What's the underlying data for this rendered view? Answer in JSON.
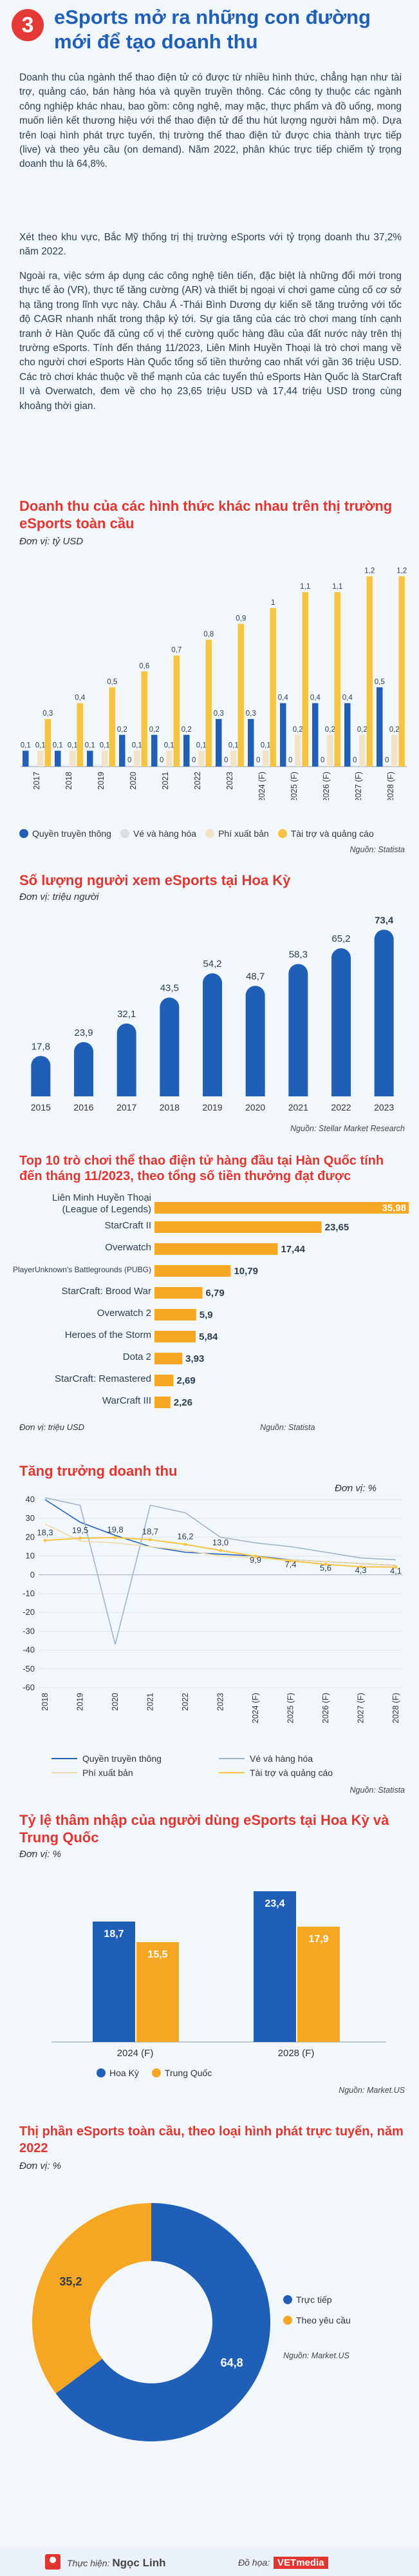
{
  "header": {
    "number": "3",
    "title": "eSports mở ra những con đường mới để tạo doanh thu"
  },
  "intro": [
    "Doanh thu của ngành thể thao điện tử có được từ nhiều hình thức, chẳng hạn như tài trợ, quảng cáo, bán hàng hóa và quyền truyền thông. Các công ty thuộc các ngành công nghiệp khác nhau, bao gồm: công nghệ, may mặc, thực phẩm và đồ uống, mong muốn liên kết thương hiệu với thể thao điện tử để thu hút lượng người hâm mộ. Dựa trên loại hình phát trực tuyến, thị trường thể thao điện tử được chia thành trực tiếp (live) và theo yêu cầu (on demand). Năm 2022, phân khúc trực tiếp chiếm tỷ trọng doanh thu là 64,8%.",
    "Xét theo khu vực, Bắc Mỹ thống trị thị trường eSports với tỷ trọng doanh thu 37,2% năm 2022.",
    "Ngoài ra, việc sớm áp dụng các công nghệ tiên tiến, đặc biệt là những đổi mới trong thực tế ảo (VR), thực tế tăng cường (AR) và thiết bị ngoại vi chơi game củng cố cơ sở hạ tầng trong lĩnh vực này. Châu Á -Thái Bình Dương dự kiến sẽ tăng trưởng với tốc độ CAGR nhanh nhất trong thập kỷ tới. Sự gia tăng của các trò chơi mang tính cạnh tranh ở Hàn Quốc đã củng cố vị thế cường quốc hàng đầu của đất nước này trên thị trường eSports. Tính đến tháng 11/2023, Liên Minh Huyền Thoại là trò chơi mang về cho người chơi eSports Hàn Quốc tổng số tiền thưởng cao nhất với gần 36 triệu USD. Các trò chơi khác thuộc về thể mạnh của các tuyển thủ eSports Hàn Quốc là StarCraft II và Overwatch, đem về cho họ 23,65 triệu USD và 17,44 triệu USD trong cùng khoảng thời gian."
  ],
  "chart1": {
    "title": "Doanh thu của các hình thức khác nhau trên thị trường eSports toàn cầu",
    "unit": "Đơn vị: tỷ USD",
    "source": "Nguồn: Statista",
    "colors": {
      "media": "#1f5fb8",
      "merch": "#d9dee4",
      "publisher": "#f1e3c7",
      "sponsor": "#f5c443"
    },
    "chart_data": {
      "type": "bar",
      "categories": [
        "2017",
        "2018",
        "2019",
        "2020",
        "2021",
        "2022",
        "2023",
        "2024 (F)",
        "2025 (F)",
        "2026 (F)",
        "2027 (F)",
        "2028 (F)"
      ],
      "series": [
        {
          "name": "Quyền truyền thông",
          "values": [
            0.1,
            0.1,
            0.1,
            0.2,
            0.2,
            0.2,
            0.3,
            0.3,
            0.4,
            0.4,
            0.4,
            0.5
          ]
        },
        {
          "name": "Vé và hàng hóa",
          "values": [
            0.0,
            0.0,
            0.0,
            0.0,
            0.0,
            0.0,
            0.0,
            0.0,
            0.0,
            0.0,
            0.0,
            0.0
          ]
        },
        {
          "name": "Phí xuất bản",
          "values": [
            0.1,
            0.1,
            0.1,
            0.1,
            0.1,
            0.1,
            0.1,
            0.1,
            0.2,
            0.2,
            0.2,
            0.2
          ]
        },
        {
          "name": "Tài trợ và quảng cáo",
          "values": [
            0.3,
            0.4,
            0.5,
            0.6,
            0.7,
            0.8,
            0.9,
            1.0,
            1.1,
            1.1,
            1.2,
            1.2
          ]
        }
      ],
      "labels": {
        "media": [
          "0,1",
          "0,1",
          "0,1",
          "0,2",
          "0,2",
          "0,2",
          "0,3",
          "0,3",
          "0,4",
          "0,4",
          "0,4",
          "0,5"
        ],
        "merch": [
          "",
          "",
          "",
          "0",
          "0",
          "0",
          "0",
          "0",
          "0",
          "0",
          "0",
          "0"
        ],
        "publisher": [
          "0,1",
          "0,1",
          "0,1",
          "0,1",
          "0,1",
          "0,1",
          "0,1",
          "0,1",
          "0,2",
          "0,2",
          "0,2",
          "0,2"
        ],
        "sponsor": [
          "0,3",
          "0,4",
          "0,5",
          "0,6",
          "0,7",
          "0,8",
          "0,9",
          "1",
          "1,1",
          "1,1",
          "1,2",
          "1,2"
        ]
      },
      "ylim": [
        0,
        1.3
      ]
    }
  },
  "chart2": {
    "title": "Số lượng người xem eSports tại Hoa Kỳ",
    "unit": "Đơn vị: triệu người",
    "source": "Nguồn: Stellar Market Research",
    "color": "#1f5fb8",
    "chart_data": {
      "type": "bar",
      "categories": [
        "2015",
        "2016",
        "2017",
        "2018",
        "2019",
        "2020",
        "2021",
        "2022",
        "2023"
      ],
      "values": [
        17.8,
        23.9,
        32.1,
        43.5,
        54.2,
        48.7,
        58.3,
        65.2,
        73.4
      ],
      "value_labels": [
        "17,8",
        "23,9",
        "32,1",
        "43,5",
        "54,2",
        "48,7",
        "58,3",
        "65,2",
        "73,4"
      ],
      "ylim": [
        0,
        80
      ]
    }
  },
  "chart3": {
    "title": "Top 10 trò chơi thể thao điện tử hàng đầu tại Hàn Quốc tính đến tháng 11/2023, theo tổng số tiền thưởng đạt được",
    "unit": "Đơn vị: triệu USD",
    "source": "Nguồn: Statista",
    "color": "#f5a623",
    "chart_data": {
      "type": "bar",
      "orientation": "horizontal",
      "categories": [
        "Liên Minh Huyền Thoại (League of Legends)",
        "StarCraft II",
        "Overwatch",
        "PlayerUnknown's Battlegrounds (PUBG)",
        "StarCraft: Brood War",
        "Overwatch 2",
        "Heroes of the Storm",
        "Dota 2",
        "StarCraft: Remastered",
        "WarCraft III"
      ],
      "values": [
        35.98,
        23.65,
        17.44,
        10.79,
        6.79,
        5.9,
        5.84,
        3.93,
        2.69,
        2.26
      ],
      "value_labels": [
        "35,98",
        "23,65",
        "17,44",
        "10,79",
        "6,79",
        "5,9",
        "5,84",
        "3,93",
        "2,69",
        "2,26"
      ]
    }
  },
  "chart4": {
    "title": "Tăng trưởng doanh thu",
    "unit": "Đơn vị: %",
    "source": "Nguồn: Statista",
    "colors": {
      "media": "#1f5fb8",
      "merch": "#9fb3c8",
      "publisher": "#f1d9a8",
      "sponsor": "#f5c443"
    },
    "chart_data": {
      "type": "line",
      "categories": [
        "2018",
        "2019",
        "2020",
        "2021",
        "2022",
        "2023",
        "2024 (F)",
        "2025 (F)",
        "2026 (F)",
        "2027 (F)",
        "2028 (F)"
      ],
      "series": [
        {
          "name": "Quyền truyền thông",
          "values": [
            40,
            28,
            21,
            15,
            12,
            11,
            10,
            8,
            7,
            6,
            5
          ]
        },
        {
          "name": "Vé và hàng hóa",
          "values": [
            41,
            37,
            -37,
            37,
            33,
            20,
            17,
            15,
            12,
            9,
            8
          ]
        },
        {
          "name": "Phí xuất bản",
          "values": [
            27,
            18,
            17,
            15,
            13,
            10,
            9,
            8,
            7,
            6,
            5
          ]
        },
        {
          "name": "Tài trợ và quảng cáo",
          "values": [
            18.3,
            19.5,
            19.8,
            18.7,
            16.2,
            13.0,
            9.9,
            7.4,
            5.6,
            4.3,
            4.1
          ]
        }
      ],
      "sponsor_labels": [
        "18,3",
        "19,5",
        "19,8",
        "18,7",
        "16,2",
        "13,0",
        "9,9",
        "7,4",
        "5,6",
        "4,3",
        "4,1"
      ],
      "yticks": [
        40,
        30,
        20,
        10,
        0,
        -10,
        -20,
        -30,
        -40,
        -50,
        -60
      ],
      "ylim": [
        -60,
        40
      ]
    }
  },
  "chart5": {
    "title": "Tỷ lệ thâm nhập của người dùng eSports tại Hoa Kỳ và Trung Quốc",
    "unit": "Đơn vị: %",
    "source": "Nguồn: Market.US",
    "colors": {
      "us": "#1f5fb8",
      "cn": "#f5a623"
    },
    "chart_data": {
      "type": "bar",
      "categories": [
        "2024 (F)",
        "2028 (F)"
      ],
      "series": [
        {
          "name": "Hoa Kỳ",
          "values": [
            18.7,
            23.4
          ]
        },
        {
          "name": "Trung Quốc",
          "values": [
            15.5,
            17.9
          ]
        }
      ],
      "value_labels": {
        "us": [
          "18,7",
          "23,4"
        ],
        "cn": [
          "15,5",
          "17,9"
        ]
      },
      "ylim": [
        0,
        25
      ]
    }
  },
  "chart6": {
    "title": "Thị phần eSports toàn cầu, theo loại hình phát trực tuyến, năm 2022",
    "unit": "Đơn vị: %",
    "source": "Nguồn: Market.US",
    "colors": {
      "live": "#1f5fb8",
      "demand": "#f5a623"
    },
    "chart_data": {
      "type": "pie",
      "categories": [
        "Trực tiếp",
        "Theo yêu cầu"
      ],
      "values": [
        64.8,
        35.2
      ],
      "value_labels": [
        "64,8",
        "35,2"
      ]
    }
  },
  "footer": {
    "author_label": "Thực hiện:",
    "author": "Ngọc Linh",
    "graphic_label": "Đồ họa:",
    "brand": "VETmedia"
  }
}
